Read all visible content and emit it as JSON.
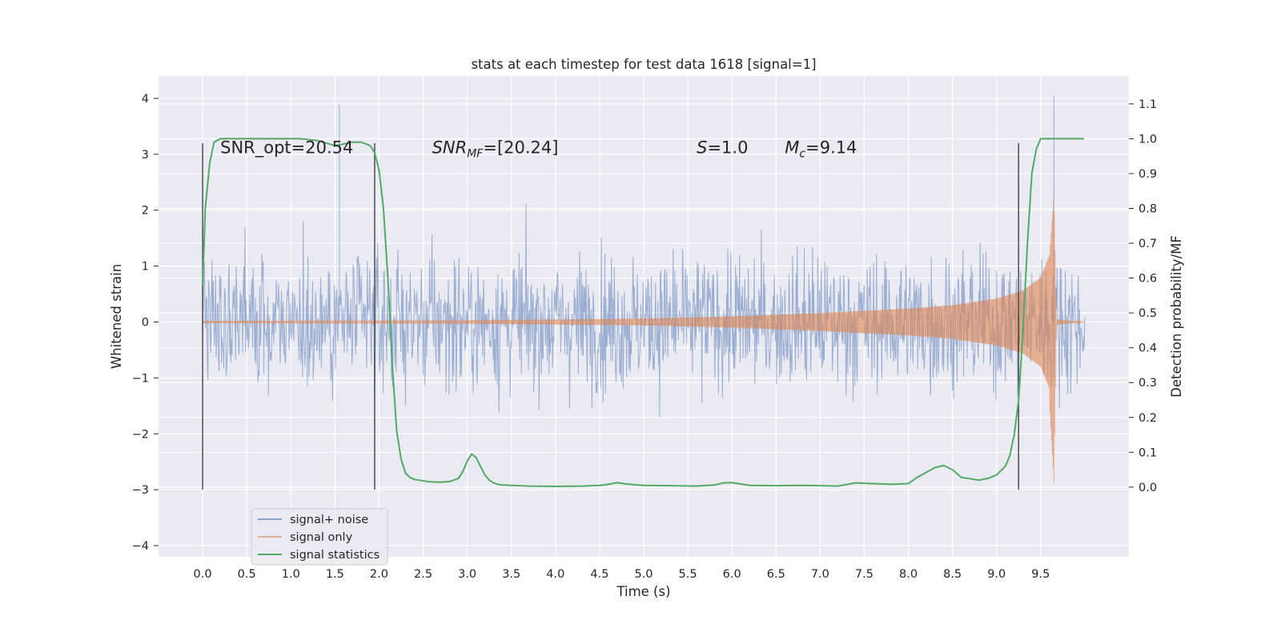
{
  "chart_data": {
    "type": "line",
    "title": "stats at each timestep for test data 1618 [signal=1]",
    "xlabel": "Time (s)",
    "ylabel": "Whitened strain",
    "y2label": "Detection probability/MF",
    "xlim": [
      -0.5,
      10.5
    ],
    "ylim": [
      -4.2,
      4.4
    ],
    "y2lim": [
      -0.2,
      1.18
    ],
    "xticks": [
      "0.0",
      "0.5",
      "1.0",
      "1.5",
      "2.0",
      "2.5",
      "3.0",
      "3.5",
      "4.0",
      "4.5",
      "5.0",
      "5.5",
      "6.0",
      "6.5",
      "7.0",
      "7.5",
      "8.0",
      "8.5",
      "9.0",
      "9.5"
    ],
    "yticks": [
      "4",
      "3",
      "2",
      "1",
      "0",
      "−1",
      "−2",
      "−3",
      "−4"
    ],
    "y2ticks": [
      "1.1",
      "1.0",
      "0.9",
      "0.8",
      "0.7",
      "0.6",
      "0.5",
      "0.4",
      "0.3",
      "0.2",
      "0.1",
      "0.0"
    ],
    "grid": true,
    "legend_position": "lower-left",
    "colors": {
      "signal_noise": "#4c72b0",
      "signal_only": "#dd8452",
      "statistics": "#55a868",
      "background": "#eaeaf2",
      "vline": "#333333"
    },
    "series": [
      {
        "name": "signal+ noise",
        "axis": "left",
        "description": "dense whitened noise band, roughly ±1.3 core with peaks to about ±3",
        "x": [
          0.0,
          1.55,
          9.65,
          10.0
        ],
        "y": [
          0.0,
          3.9,
          4.05,
          0.0
        ]
      },
      {
        "name": "signal only",
        "axis": "left",
        "x": [
          0.0,
          3.0,
          5.0,
          6.0,
          7.0,
          8.0,
          8.5,
          9.0,
          9.3,
          9.5,
          9.6,
          9.65,
          9.68,
          10.0
        ],
        "y": [
          0.02,
          0.03,
          0.06,
          0.1,
          0.16,
          0.24,
          0.3,
          0.42,
          0.56,
          0.8,
          1.2,
          2.3,
          0.05,
          0.0
        ]
      },
      {
        "name": "signal statistics",
        "axis": "right",
        "x": [
          0.0,
          0.03,
          0.08,
          0.13,
          0.2,
          0.3,
          0.5,
          0.8,
          1.1,
          1.3,
          1.5,
          1.7,
          1.8,
          1.9,
          1.95,
          2.0,
          2.05,
          2.1,
          2.15,
          2.2,
          2.25,
          2.3,
          2.35,
          2.4,
          2.45,
          2.5,
          2.55,
          2.6,
          2.7,
          2.8,
          2.9,
          2.95,
          3.0,
          3.05,
          3.1,
          3.15,
          3.2,
          3.25,
          3.3,
          3.35,
          3.4,
          3.5,
          3.7,
          4.0,
          4.3,
          4.5,
          4.6,
          4.7,
          4.8,
          5.0,
          5.3,
          5.6,
          5.8,
          5.9,
          6.0,
          6.2,
          6.5,
          6.8,
          7.0,
          7.2,
          7.4,
          7.6,
          7.8,
          8.0,
          8.1,
          8.2,
          8.3,
          8.4,
          8.5,
          8.6,
          8.8,
          8.9,
          9.0,
          9.1,
          9.15,
          9.2,
          9.25,
          9.3,
          9.35,
          9.4,
          9.45,
          9.5,
          9.7,
          9.99
        ],
        "y": [
          0.58,
          0.8,
          0.93,
          0.99,
          1.0,
          1.0,
          1.0,
          1.0,
          1.0,
          0.995,
          0.98,
          0.99,
          0.99,
          0.98,
          0.96,
          0.91,
          0.8,
          0.6,
          0.35,
          0.16,
          0.08,
          0.04,
          0.028,
          0.022,
          0.02,
          0.018,
          0.016,
          0.015,
          0.014,
          0.016,
          0.025,
          0.045,
          0.075,
          0.095,
          0.085,
          0.06,
          0.035,
          0.02,
          0.012,
          0.008,
          0.006,
          0.005,
          0.003,
          0.002,
          0.003,
          0.005,
          0.008,
          0.013,
          0.009,
          0.005,
          0.004,
          0.003,
          0.006,
          0.012,
          0.013,
          0.005,
          0.004,
          0.005,
          0.004,
          0.003,
          0.012,
          0.01,
          0.008,
          0.01,
          0.028,
          0.042,
          0.056,
          0.062,
          0.05,
          0.028,
          0.02,
          0.025,
          0.035,
          0.06,
          0.09,
          0.15,
          0.25,
          0.45,
          0.7,
          0.9,
          0.97,
          1.0,
          1.0,
          1.0
        ]
      }
    ],
    "vlines": {
      "x": [
        0.0,
        1.95,
        9.25
      ],
      "ymin": -3.0,
      "ymax": 3.2
    },
    "annotations": [
      {
        "text": "SNR_opt=20.54",
        "x": 0.2,
        "y": 3.15
      },
      {
        "text": "SNR",
        "sub": "MF",
        "tail": "=[20.24]",
        "x": 2.6,
        "y": 3.15
      },
      {
        "text": "S",
        "tail": "=1.0",
        "x": 5.6,
        "y": 3.15
      },
      {
        "text": "M",
        "sub": "c",
        "tail": "=9.14",
        "x": 6.6,
        "y": 3.15
      }
    ]
  }
}
